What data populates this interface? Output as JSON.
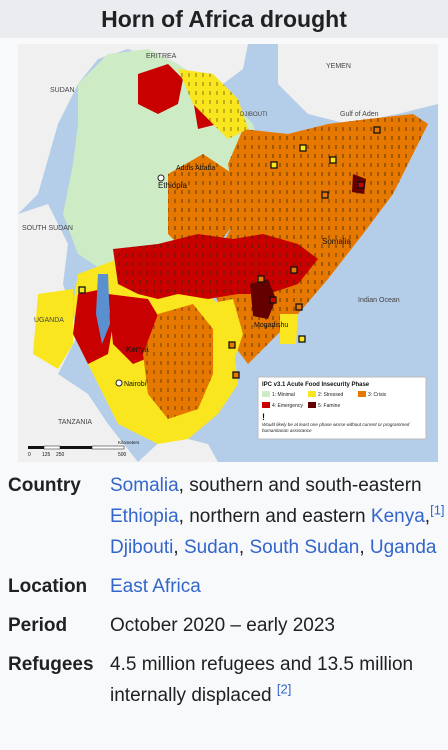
{
  "title": "Horn of Africa drought",
  "map": {
    "labels": {
      "eritrea": "ERITREA",
      "yemen": "YEMEN",
      "sudan": "SUDAN",
      "djibouti": "DJIBOUTI",
      "gulf": "Gulf of Aden",
      "addis": "Addis Ababa",
      "ethiopia": "Ethiopia",
      "south_sudan": "SOUTH SUDAN",
      "somalia": "Somalia",
      "indian_ocean": "Indian Ocean",
      "uganda": "UGANDA",
      "mogadishu": "Mogadishu",
      "kenya": "Kenya",
      "nairobi": "Nairobi",
      "tanzania": "TANZANIA"
    },
    "legend": {
      "title": "IPC v3.1 Acute Food Insecurity Phase",
      "phases": [
        {
          "label": "1: Minimal",
          "color": "#cdebc5"
        },
        {
          "label": "2: Stressed",
          "color": "#fae61e"
        },
        {
          "label": "3: Crisis",
          "color": "#e67800"
        },
        {
          "label": "4: Emergency",
          "color": "#c80000"
        },
        {
          "label": "5: Famine",
          "color": "#640000"
        }
      ],
      "note": "Would likely be at least one phase worse without current or programmed humanitarian assistance",
      "mark": "!"
    },
    "scale": {
      "ticks": [
        "0",
        "125",
        "250",
        "500"
      ],
      "unit": "Kilometers"
    },
    "colors": {
      "sea": "#b4cde8",
      "land_outside": "#f0f0f0",
      "border": "#ffffff"
    }
  },
  "rows": [
    {
      "label": "Country",
      "parts": [
        {
          "type": "link",
          "text": "Somalia"
        },
        {
          "type": "text",
          "text": ", southern and south-eastern "
        },
        {
          "type": "link",
          "text": "Ethiopia"
        },
        {
          "type": "text",
          "text": ", northern and eastern "
        },
        {
          "type": "link",
          "text": "Kenya"
        },
        {
          "type": "text",
          "text": ","
        },
        {
          "type": "ref",
          "text": "[1]"
        },
        {
          "type": "text",
          "text": " "
        },
        {
          "type": "link",
          "text": "Djibouti"
        },
        {
          "type": "text",
          "text": ", "
        },
        {
          "type": "link",
          "text": "Sudan"
        },
        {
          "type": "text",
          "text": ", "
        },
        {
          "type": "link",
          "text": "South Sudan"
        },
        {
          "type": "text",
          "text": ", "
        },
        {
          "type": "link",
          "text": "Uganda"
        }
      ]
    },
    {
      "label": "Location",
      "parts": [
        {
          "type": "link",
          "text": "East Africa"
        }
      ]
    },
    {
      "label": "Period",
      "parts": [
        {
          "type": "text",
          "text": "October 2020 – early 2023"
        }
      ]
    },
    {
      "label": "Refugees",
      "parts": [
        {
          "type": "text",
          "text": "4.5 million refugees and 13.5 million internally displaced "
        },
        {
          "type": "ref",
          "text": "[2]"
        }
      ]
    }
  ]
}
